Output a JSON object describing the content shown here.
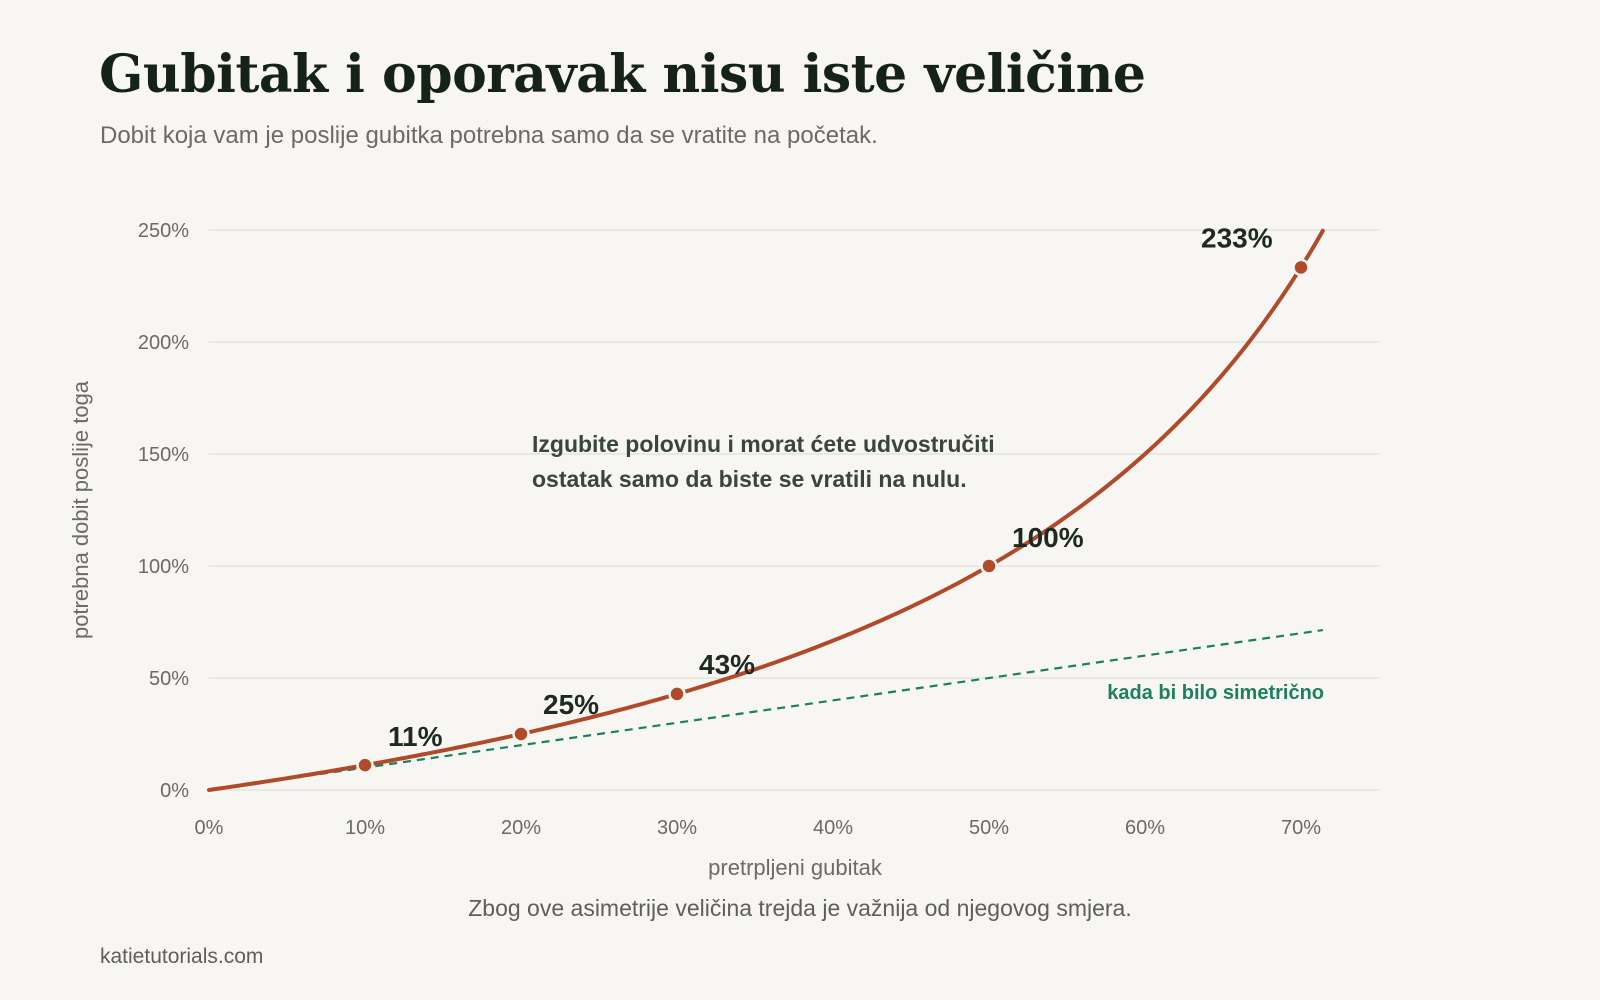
{
  "title": "Gubitak i oporavak nisu iste veličine",
  "subtitle": "Dobit koja vam je poslije gubitka potrebna samo da se vratite na početak.",
  "footnote": "Zbog ove asimetrije veličina trejda je važnija od njegovog smjera.",
  "source": "katietutorials.com",
  "colors": {
    "background": "#f8f6f2",
    "curve": "#b04a2a",
    "symmetric": "#1a8060",
    "grid": "#e6e3de",
    "text": "#1d2a20"
  },
  "chart_data": {
    "type": "line",
    "xlabel": "pretrpljeni gubitak",
    "ylabel": "potrebna dobit poslije toga",
    "xlim": [
      0,
      75
    ],
    "ylim": [
      0,
      250
    ],
    "x_ticks": [
      0,
      10,
      20,
      30,
      40,
      50,
      60,
      70
    ],
    "x_tick_labels": [
      "0%",
      "10%",
      "20%",
      "30%",
      "40%",
      "50%",
      "60%",
      "70%"
    ],
    "y_ticks": [
      0,
      50,
      100,
      150,
      200,
      250
    ],
    "y_tick_labels": [
      "0%",
      "50%",
      "100%",
      "150%",
      "200%",
      "250%"
    ],
    "grid": "horizontal",
    "series": [
      {
        "name": "potrebna dobit",
        "color": "#b04a2a",
        "style": "solid",
        "x": [
          0,
          5,
          10,
          15,
          20,
          25,
          30,
          35,
          40,
          45,
          50,
          55,
          60,
          65,
          70,
          71.4
        ],
        "y": [
          0,
          5.3,
          11.1,
          17.6,
          25,
          33.3,
          42.9,
          53.8,
          66.7,
          81.8,
          100,
          122.2,
          150,
          185.7,
          233.3,
          250
        ]
      },
      {
        "name": "kada bi bilo simetrično",
        "color": "#1a8060",
        "style": "dashed",
        "x": [
          0,
          71.4
        ],
        "y": [
          0,
          71.4
        ]
      }
    ],
    "markers": [
      {
        "x": 10,
        "y": 11.1,
        "label": "11%"
      },
      {
        "x": 20,
        "y": 25,
        "label": "25%"
      },
      {
        "x": 30,
        "y": 42.9,
        "label": "43%"
      },
      {
        "x": 50,
        "y": 100,
        "label": "100%"
      },
      {
        "x": 70,
        "y": 233.3,
        "label": "233%"
      }
    ],
    "annotation": [
      "Izgubite polovinu i morat ćete udvostručiti",
      "ostatak samo da biste se vratili na nulu."
    ]
  }
}
